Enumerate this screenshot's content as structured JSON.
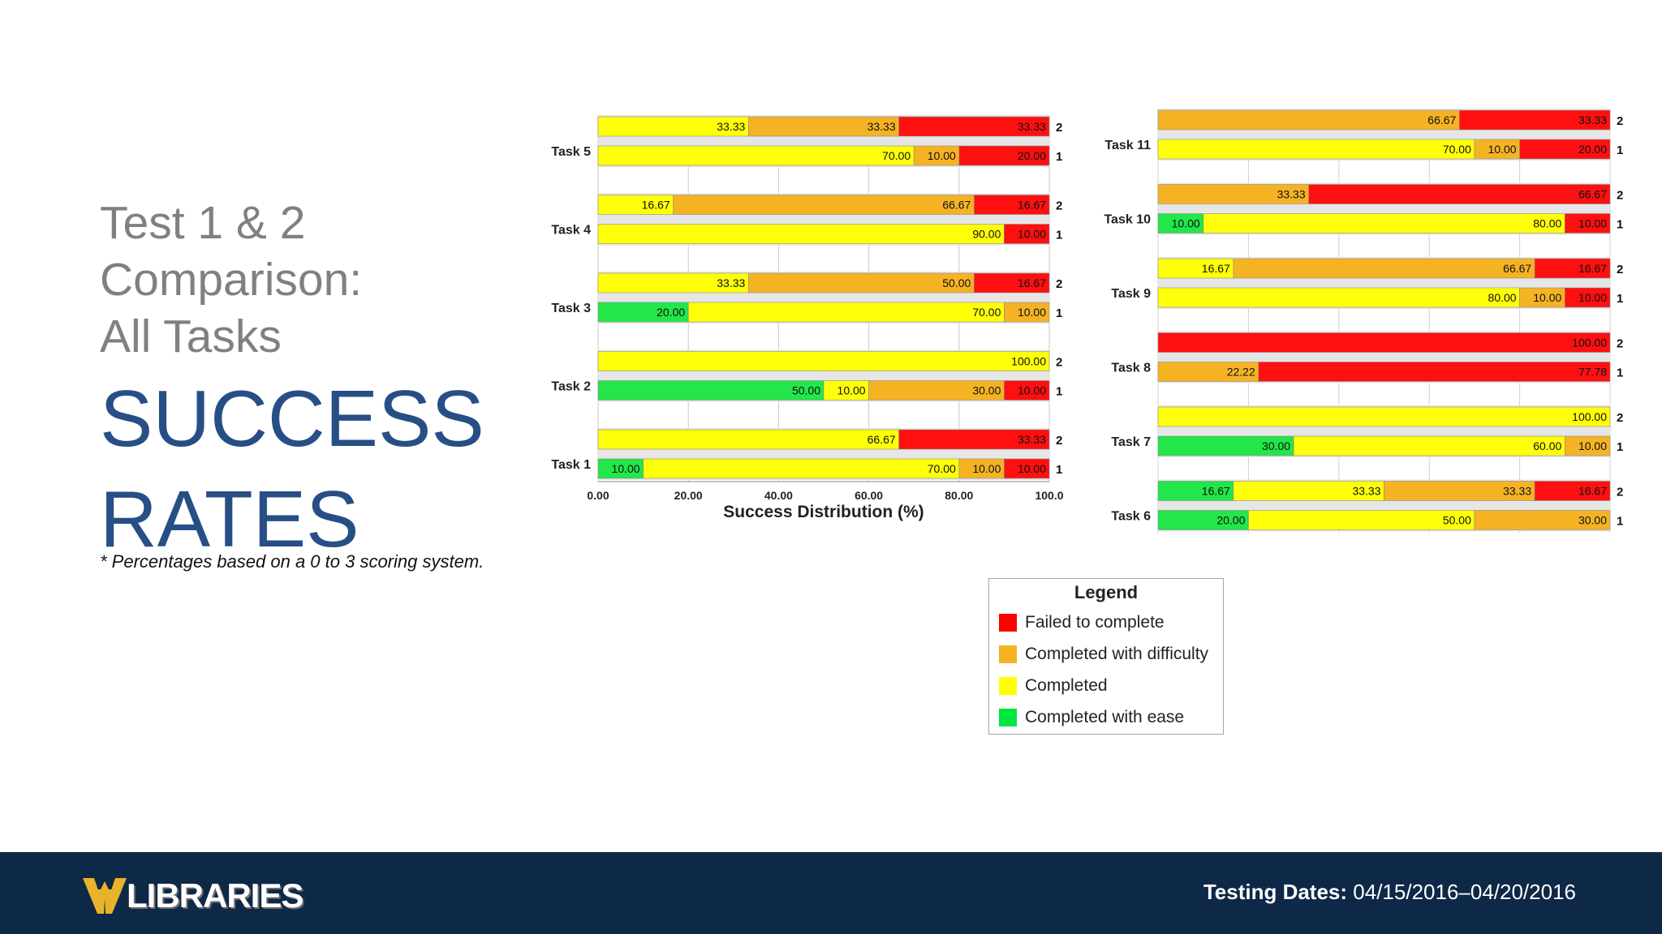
{
  "title": {
    "line1": "Test 1 & 2",
    "line2": "Comparison:",
    "line3": "All Tasks",
    "main1": "SUCCESS",
    "main2": "RATES"
  },
  "footnote": "* Percentages based on a 0 to 3 scoring system.",
  "footer": {
    "logo_text": "LIBRARIES",
    "dates_label": "Testing Dates:",
    "dates_value": "04/15/2016–04/20/2016"
  },
  "legend": {
    "title": "Legend",
    "items": [
      {
        "label": "Failed to complete",
        "color": "#ff0000"
      },
      {
        "label": "Completed with difficulty",
        "color": "#f5b324"
      },
      {
        "label": "Completed",
        "color": "#ffff00"
      },
      {
        "label": "Completed with ease",
        "color": "#00e640"
      }
    ]
  },
  "colors": {
    "ease": "#22e64a",
    "completed": "#ffff0a",
    "difficulty": "#f5b324",
    "failed": "#ff1010"
  },
  "chart_data": [
    {
      "type": "bar",
      "orientation": "horizontal",
      "stacked": true,
      "xlabel": "Success Distribution (%)",
      "xticks": [
        "0.00",
        "20.00",
        "40.00",
        "60.00",
        "80.00",
        "100.0"
      ],
      "xlim": [
        0,
        100
      ],
      "series_order": [
        "ease",
        "completed",
        "difficulty",
        "failed"
      ],
      "tasks": [
        {
          "task": "Task 5",
          "bars": [
            {
              "test": "2",
              "ease": 0,
              "completed": 33.33,
              "difficulty": 33.33,
              "failed": 33.33
            },
            {
              "test": "1",
              "ease": 0,
              "completed": 70.0,
              "difficulty": 10.0,
              "failed": 20.0
            }
          ]
        },
        {
          "task": "Task 4",
          "bars": [
            {
              "test": "2",
              "ease": 0,
              "completed": 16.67,
              "difficulty": 66.67,
              "failed": 16.67
            },
            {
              "test": "1",
              "ease": 0,
              "completed": 90.0,
              "difficulty": 0,
              "failed": 10.0
            }
          ]
        },
        {
          "task": "Task 3",
          "bars": [
            {
              "test": "2",
              "ease": 0,
              "completed": 33.33,
              "difficulty": 50.0,
              "failed": 16.67
            },
            {
              "test": "1",
              "ease": 20.0,
              "completed": 70.0,
              "difficulty": 10.0,
              "failed": 0
            }
          ]
        },
        {
          "task": "Task 2",
          "bars": [
            {
              "test": "2",
              "ease": 0,
              "completed": 100.0,
              "difficulty": 0,
              "failed": 0
            },
            {
              "test": "1",
              "ease": 50.0,
              "completed": 10.0,
              "difficulty": 30.0,
              "failed": 10.0
            }
          ]
        },
        {
          "task": "Task 1",
          "bars": [
            {
              "test": "2",
              "ease": 0,
              "completed": 66.67,
              "difficulty": 0,
              "failed": 33.33
            },
            {
              "test": "1",
              "ease": 10.0,
              "completed": 70.0,
              "difficulty": 10.0,
              "failed": 10.0
            }
          ]
        }
      ]
    },
    {
      "type": "bar",
      "orientation": "horizontal",
      "stacked": true,
      "xlim": [
        0,
        100
      ],
      "series_order": [
        "ease",
        "completed",
        "difficulty",
        "failed"
      ],
      "tasks": [
        {
          "task": "Task 11",
          "bars": [
            {
              "test": "2",
              "ease": 0,
              "completed": 0,
              "difficulty": 66.67,
              "failed": 33.33
            },
            {
              "test": "1",
              "ease": 0,
              "completed": 70.0,
              "difficulty": 10.0,
              "failed": 20.0
            }
          ]
        },
        {
          "task": "Task 10",
          "bars": [
            {
              "test": "2",
              "ease": 0,
              "completed": 0,
              "difficulty": 33.33,
              "failed": 66.67
            },
            {
              "test": "1",
              "ease": 10.0,
              "completed": 80.0,
              "difficulty": 0,
              "failed": 10.0
            }
          ]
        },
        {
          "task": "Task 9",
          "bars": [
            {
              "test": "2",
              "ease": 0,
              "completed": 16.67,
              "difficulty": 66.67,
              "failed": 16.67
            },
            {
              "test": "1",
              "ease": 0,
              "completed": 80.0,
              "difficulty": 10.0,
              "failed": 10.0
            }
          ]
        },
        {
          "task": "Task 8",
          "bars": [
            {
              "test": "2",
              "ease": 0,
              "completed": 0,
              "difficulty": 0,
              "failed": 100.0
            },
            {
              "test": "1",
              "ease": 0,
              "completed": 0,
              "difficulty": 22.22,
              "failed": 77.78
            }
          ]
        },
        {
          "task": "Task 7",
          "bars": [
            {
              "test": "2",
              "ease": 0,
              "completed": 100.0,
              "difficulty": 0,
              "failed": 0
            },
            {
              "test": "1",
              "ease": 30.0,
              "completed": 60.0,
              "difficulty": 10.0,
              "failed": 0
            }
          ]
        },
        {
          "task": "Task 6",
          "bars": [
            {
              "test": "2",
              "ease": 16.67,
              "completed": 33.33,
              "difficulty": 33.33,
              "failed": 16.67
            },
            {
              "test": "1",
              "ease": 20.0,
              "completed": 50.0,
              "difficulty": 30.0,
              "failed": 0
            }
          ]
        }
      ]
    }
  ]
}
